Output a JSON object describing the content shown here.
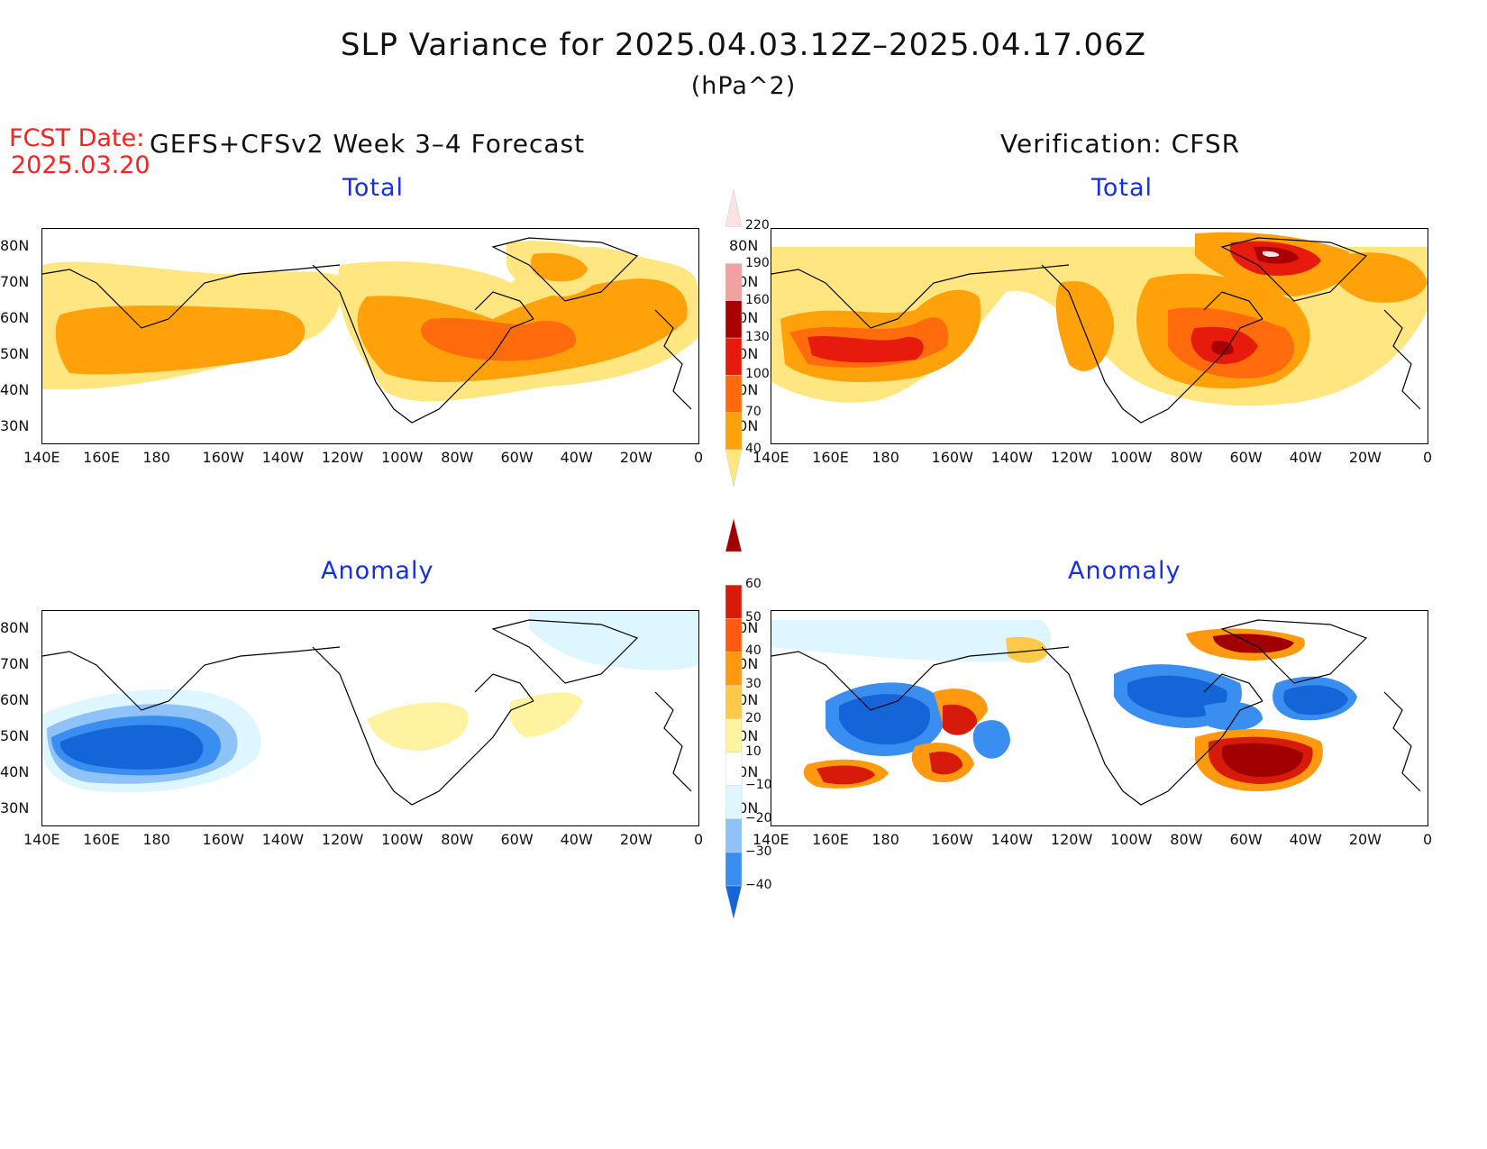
{
  "header": {
    "title": "SLP Variance for 2025.04.03.12Z–2025.04.17.06Z",
    "units": "(hPa^2)",
    "fcst_label": "FCST Date:",
    "fcst_date": "2025.03.20",
    "left_header": "GEFS+CFSv2 Week 3–4 Forecast",
    "right_header": "Verification: CFSR"
  },
  "panels": {
    "top_left_title": "Total",
    "top_right_title": "Total",
    "bottom_left_title": "Anomaly",
    "bottom_right_title": "Anomaly"
  },
  "axes": {
    "lat_labels": [
      "80N",
      "70N",
      "60N",
      "50N",
      "40N",
      "30N"
    ],
    "lon_labels": [
      "140E",
      "160E",
      "180",
      "160W",
      "140W",
      "120W",
      "100W",
      "80W",
      "60W",
      "40W",
      "20W",
      "0"
    ]
  },
  "colorbars": {
    "total": {
      "labels": [
        "40",
        "70",
        "100",
        "130",
        "160",
        "190",
        "220"
      ],
      "colors": [
        "#ffe680",
        "#ffa10a",
        "#ff6b0d",
        "#e61a0d",
        "#a80000",
        "#f2a0a0",
        "#fce3e3"
      ]
    },
    "anomaly": {
      "labels": [
        "−40",
        "−30",
        "−20",
        "−10",
        "10",
        "20",
        "30",
        "40",
        "50",
        "60"
      ],
      "colors": [
        "#1565d8",
        "#3a8ef0",
        "#8fc3f7",
        "#ddf6ff",
        "#ffffff",
        "#fff2a0",
        "#ffc94a",
        "#ff9a10",
        "#ff5a10",
        "#d81a0a",
        "#a00000"
      ]
    }
  },
  "colors": {
    "title_text": "#111111",
    "fcst_text": "#ff2020",
    "panel_title": "#1530e8"
  }
}
